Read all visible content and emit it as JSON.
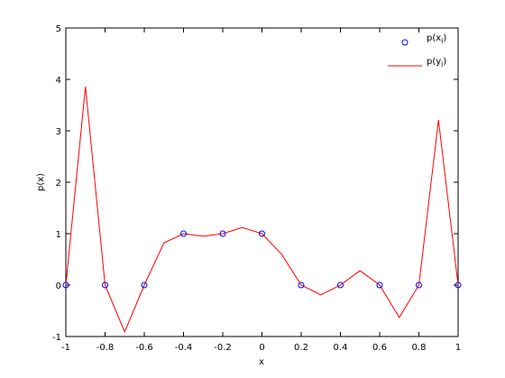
{
  "chart_data": {
    "type": "line",
    "xlabel": "x",
    "ylabel": "p(x)",
    "xlim": [
      -1,
      1
    ],
    "xticks": [
      -1,
      -0.8,
      -0.6,
      -0.4,
      -0.2,
      0,
      0.2,
      0.4,
      0.6,
      0.8,
      1
    ],
    "ylim": [
      -1,
      5
    ],
    "yticks": [
      -1,
      0,
      1,
      2,
      3,
      4,
      5
    ],
    "legend": "northeast",
    "series": [
      {
        "name": "p(x_i)",
        "type": "scatter",
        "color": "#0000ff",
        "x": [
          -1,
          -0.8,
          -0.6,
          -0.4,
          -0.2,
          0,
          0.2,
          0.4,
          0.6,
          0.8,
          1
        ],
        "values": [
          0,
          0,
          0,
          1,
          1,
          1,
          0,
          0,
          0,
          0,
          0
        ]
      },
      {
        "name": "p(y_i)",
        "type": "line",
        "color": "#ff0000",
        "x": [
          -1,
          -0.9,
          -0.8,
          -0.7,
          -0.6,
          -0.5,
          -0.4,
          -0.3,
          -0.2,
          -0.1,
          0,
          0.1,
          0.2,
          0.3,
          0.4,
          0.5,
          0.6,
          0.7,
          0.8,
          0.9,
          1
        ],
        "values": [
          0,
          3.86,
          0,
          -0.91,
          0,
          0.82,
          1,
          0.95,
          1,
          1.12,
          1,
          0.6,
          0,
          -0.19,
          0,
          0.28,
          0,
          -0.63,
          0,
          3.21,
          0
        ]
      }
    ]
  }
}
